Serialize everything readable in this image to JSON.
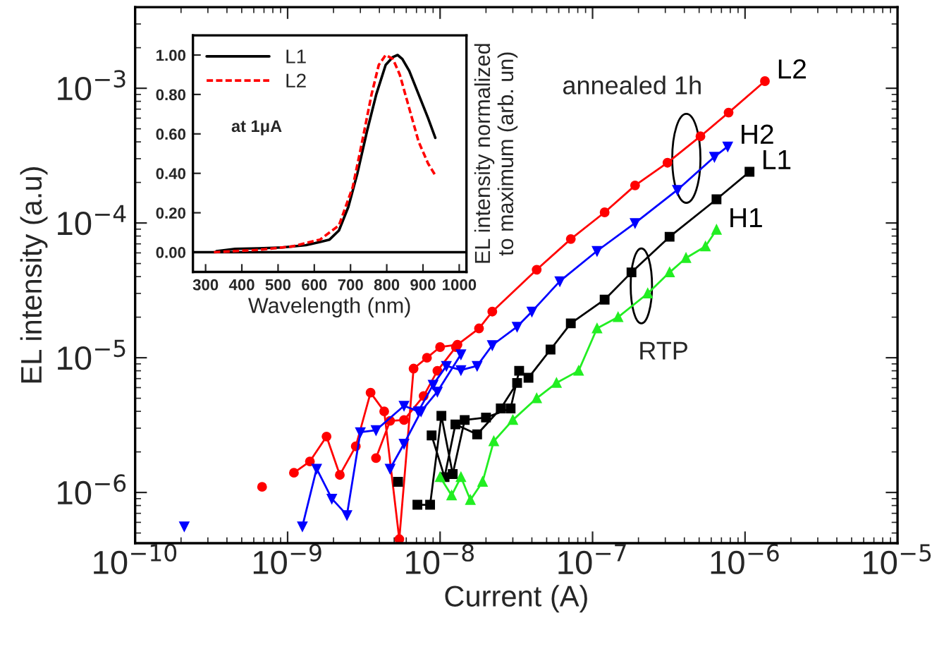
{
  "chart_data": [
    {
      "type": "line",
      "xlabel": "Current (A)",
      "ylabel": "EL intensity (a.u)",
      "log": "xy",
      "grid": false,
      "legend": false,
      "xlim": [
        1e-10,
        1e-05
      ],
      "ylim": [
        4.2e-07,
        0.004
      ],
      "xticks": [
        {
          "value": 1e-10,
          "label": "10$^{−10}$"
        },
        {
          "value": 1e-09,
          "label": "10$^{−9}$"
        },
        {
          "value": 1e-08,
          "label": "10$^{−8}$"
        },
        {
          "value": 1e-07,
          "label": "10$^{−7}$"
        },
        {
          "value": 1e-06,
          "label": "10$^{−6}$"
        },
        {
          "value": 1e-05,
          "label": "10$^{−5}$"
        }
      ],
      "yticks": [
        {
          "value": 1e-06,
          "label": "10$^{−6}$"
        },
        {
          "value": 1e-05,
          "label": "10$^{−5}$"
        },
        {
          "value": 0.0001,
          "label": "10$^{−4}$"
        },
        {
          "value": 0.001,
          "label": "10$^{−3}$"
        }
      ],
      "annotations": [
        "annealed 1h",
        "RTP"
      ],
      "series": [
        {
          "name": "L2",
          "color": "#ff0000",
          "marker": "circle",
          "x": [
            6.8e-10,
            null,
            3.8e-09,
            4.7e-09,
            5.8e-09,
            7.8e-09,
            9.6e-09,
            1.27e-08,
            null,
            1.1e-09,
            1.4e-09,
            1.8e-09,
            2.2e-09,
            2.8e-09,
            3.5e-09,
            4.3e-09,
            5.4e-09,
            6.7e-09,
            8.2e-09,
            1e-08,
            1.3e-08,
            1.8e-08,
            2.2e-08,
            4.3e-08,
            7.2e-08,
            1.2e-07,
            1.9e-07,
            3.1e-07,
            5.1e-07,
            7.8e-07,
            1.35e-06
          ],
          "values": [
            1.1e-06,
            null,
            1.8e-06,
            3.4e-06,
            3.45e-06,
            5.2e-06,
            8e-06,
            1.2e-05,
            null,
            1.4e-06,
            1.7e-06,
            2.6e-06,
            1.35e-06,
            2.2e-06,
            5.5e-06,
            4e-06,
            4.5e-07,
            8.3e-06,
            1e-05,
            1.2e-05,
            1.25e-05,
            1.65e-05,
            2.2e-05,
            4.5e-05,
            7.6e-05,
            0.00012,
            0.00019,
            0.00028,
            0.00044,
            0.00066,
            0.00113
          ]
        },
        {
          "name": "H2",
          "color": "#0000ff",
          "marker": "triangle_down",
          "x": [
            2.1e-10,
            null,
            4.7e-09,
            5.8e-09,
            7.5e-09,
            9.6e-09,
            1.37e-08,
            null,
            1.25e-09,
            1.55e-09,
            1.95e-09,
            2.45e-09,
            3e-09,
            3.8e-09,
            5.8e-09,
            7.2e-09,
            9e-09,
            1.1e-08,
            1.37e-08,
            1.75e-08,
            2.2e-08,
            3.2e-08,
            4e-08,
            6.1e-08,
            1.07e-07,
            1.9e-07,
            3.6e-07,
            6.3e-07,
            7.7e-07
          ],
          "values": [
            5.6e-07,
            null,
            1.5e-06,
            2.3e-06,
            4e-06,
            5.6e-06,
            1.06e-05,
            null,
            5.6e-07,
            1.5e-06,
            9e-07,
            6.8e-07,
            2.8e-06,
            2.9e-06,
            4.4e-06,
            4e-06,
            6.3e-06,
            8.7e-06,
            8.1e-06,
            8.7e-06,
            1.24e-05,
            1.7e-05,
            2.2e-05,
            3.7e-05,
            6.2e-05,
            0.0001,
            0.000176,
            0.00031,
            0.00037
          ]
        },
        {
          "name": "L1",
          "color": "#000000",
          "marker": "square",
          "x": [
            5.3e-09,
            null,
            8.8e-09,
            1.07e-08,
            1.26e-08,
            1.75e-08,
            2.5e-08,
            3.2e-08,
            null,
            7.1e-09,
            8.6e-09,
            1.02e-08,
            1.21e-08,
            1.45e-08,
            2e-08,
            2.9e-08,
            3.3e-08,
            3.8e-08,
            5.3e-08,
            7.2e-08,
            1.2e-07,
            1.8e-07,
            3.2e-07,
            6.5e-07,
            1.07e-06
          ],
          "values": [
            1.2e-06,
            null,
            2.65e-06,
            1.3e-06,
            3.2e-06,
            2.7e-06,
            4.2e-06,
            6.5e-06,
            null,
            8.1e-07,
            8.1e-07,
            3.7e-06,
            1.37e-06,
            3.45e-06,
            3.6e-06,
            4.2e-06,
            8e-06,
            7.1e-06,
            1.15e-05,
            1.8e-05,
            2.7e-05,
            4.3e-05,
            7.9e-05,
            0.00015,
            0.00024
          ]
        },
        {
          "name": "H1",
          "color": "#22ee22",
          "marker": "triangle",
          "x": [
            1e-08,
            1.19e-08,
            1.37e-08,
            1.58e-08,
            1.9e-08,
            2.25e-08,
            3e-08,
            4.3e-08,
            5.8e-08,
            8.1e-08,
            1.07e-07,
            1.47e-07,
            2.3e-07,
            3.2e-07,
            4.1e-07,
            5.5e-07,
            6.5e-07
          ],
          "values": [
            1.3e-06,
            9.5e-07,
            1.3e-06,
            8.8e-07,
            1.2e-06,
            2.4e-06,
            3.45e-06,
            5e-06,
            6.5e-06,
            8e-06,
            1.65e-05,
            2e-05,
            3e-05,
            4.3e-05,
            5.5e-05,
            6.7e-05,
            8.9e-05
          ]
        }
      ]
    },
    {
      "type": "line",
      "xlabel": "Wavelength (nm)",
      "ylabel": "EL intensity normalized\nto maximum (arb. un)",
      "grid": false,
      "legend": "top left",
      "marker": "none",
      "xlim": [
        265,
        1020
      ],
      "ylim": [
        -0.1,
        1.1
      ],
      "xticks": [
        300,
        400,
        500,
        600,
        700,
        800,
        900,
        1000
      ],
      "yticks": [
        {
          "value": 0,
          "label": "0.00"
        },
        {
          "value": 0.2,
          "label": "0.20"
        },
        {
          "value": 0.4,
          "label": "0.40"
        },
        {
          "value": 0.6,
          "label": "0.60"
        },
        {
          "value": 0.8,
          "label": "0.80"
        },
        {
          "value": 1.0,
          "label": "1.00"
        }
      ],
      "annotations": [
        "at 1μA"
      ],
      "ref_lines": [
        {
          "axis": "y",
          "value": 0,
          "color": "#000000",
          "line_style": "solid"
        }
      ],
      "series": [
        {
          "name": "L1",
          "color": "#000000",
          "line_style": "solid",
          "x": [
            330,
            382,
            447,
            512,
            577,
            616,
            642,
            668,
            694,
            719,
            745,
            771,
            797,
            817,
            830,
            843,
            862,
            888,
            914,
            934
          ],
          "values": [
            0.005,
            0.017,
            0.02,
            0.024,
            0.036,
            0.052,
            0.064,
            0.11,
            0.23,
            0.4,
            0.61,
            0.8,
            0.95,
            0.99,
            1.0,
            0.98,
            0.92,
            0.8,
            0.68,
            0.58
          ]
        },
        {
          "name": "L2",
          "color": "#ff0000",
          "line_style": "dashed",
          "x": [
            323,
            447,
            538,
            616,
            668,
            706,
            732,
            758,
            778,
            797,
            817,
            836,
            862,
            888,
            914,
            934
          ],
          "values": [
            0.0,
            0.012,
            0.029,
            0.064,
            0.136,
            0.33,
            0.56,
            0.8,
            0.95,
            1.0,
            0.98,
            0.9,
            0.73,
            0.56,
            0.45,
            0.39
          ]
        }
      ]
    }
  ]
}
